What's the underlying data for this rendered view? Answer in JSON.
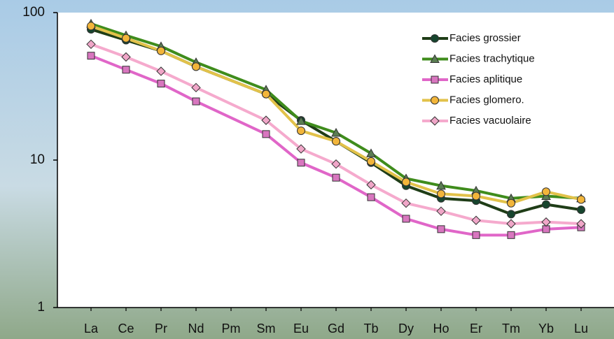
{
  "chart_data": {
    "type": "line",
    "log_scale": true,
    "span_gaps": true,
    "categories": [
      "La",
      "Ce",
      "Pr",
      "Nd",
      "Pm",
      "Sm",
      "Eu",
      "Gd",
      "Tb",
      "Dy",
      "Ho",
      "Er",
      "Tm",
      "Yb",
      "Lu"
    ],
    "ylim": [
      1,
      100
    ],
    "yticks": [
      1,
      10,
      100
    ],
    "series": [
      {
        "name": "Facies grossier",
        "color": "#1f3d17",
        "marker": "circle",
        "marker_color": "#17452e",
        "values": [
          77,
          65,
          55,
          43,
          null,
          28,
          18.6,
          13.4,
          9.6,
          6.7,
          5.5,
          5.3,
          4.3,
          5.0,
          4.6
        ]
      },
      {
        "name": "Facies trachytique",
        "color": "#3f8c1c",
        "marker": "triangle",
        "marker_color": "#5a7d52",
        "values": [
          84,
          70,
          59,
          46,
          null,
          30,
          18.4,
          15.3,
          11.1,
          7.5,
          6.7,
          6.2,
          5.5,
          5.7,
          5.5
        ]
      },
      {
        "name": "Facies aplitique",
        "color": "#e066c8",
        "marker": "square",
        "marker_color": "#d876bf",
        "values": [
          51,
          41,
          33,
          25,
          null,
          15,
          9.6,
          7.6,
          5.6,
          4.0,
          3.4,
          3.1,
          3.1,
          3.4,
          3.5
        ]
      },
      {
        "name": "Facies glomero.",
        "color": "#e2c24a",
        "marker": "circle",
        "marker_color": "#f2b53a",
        "values": [
          81,
          67,
          55,
          43,
          null,
          28,
          15.8,
          13.4,
          9.8,
          7.1,
          5.9,
          5.7,
          5.1,
          6.1,
          5.4
        ]
      },
      {
        "name": "Facies vacuolaire",
        "color": "#f5aacd",
        "marker": "diamond",
        "marker_color": "#f0a6c8",
        "values": [
          61,
          50,
          40,
          31,
          null,
          18.6,
          11.9,
          9.4,
          6.8,
          5.1,
          4.5,
          3.9,
          3.7,
          3.8,
          3.7
        ]
      }
    ]
  }
}
